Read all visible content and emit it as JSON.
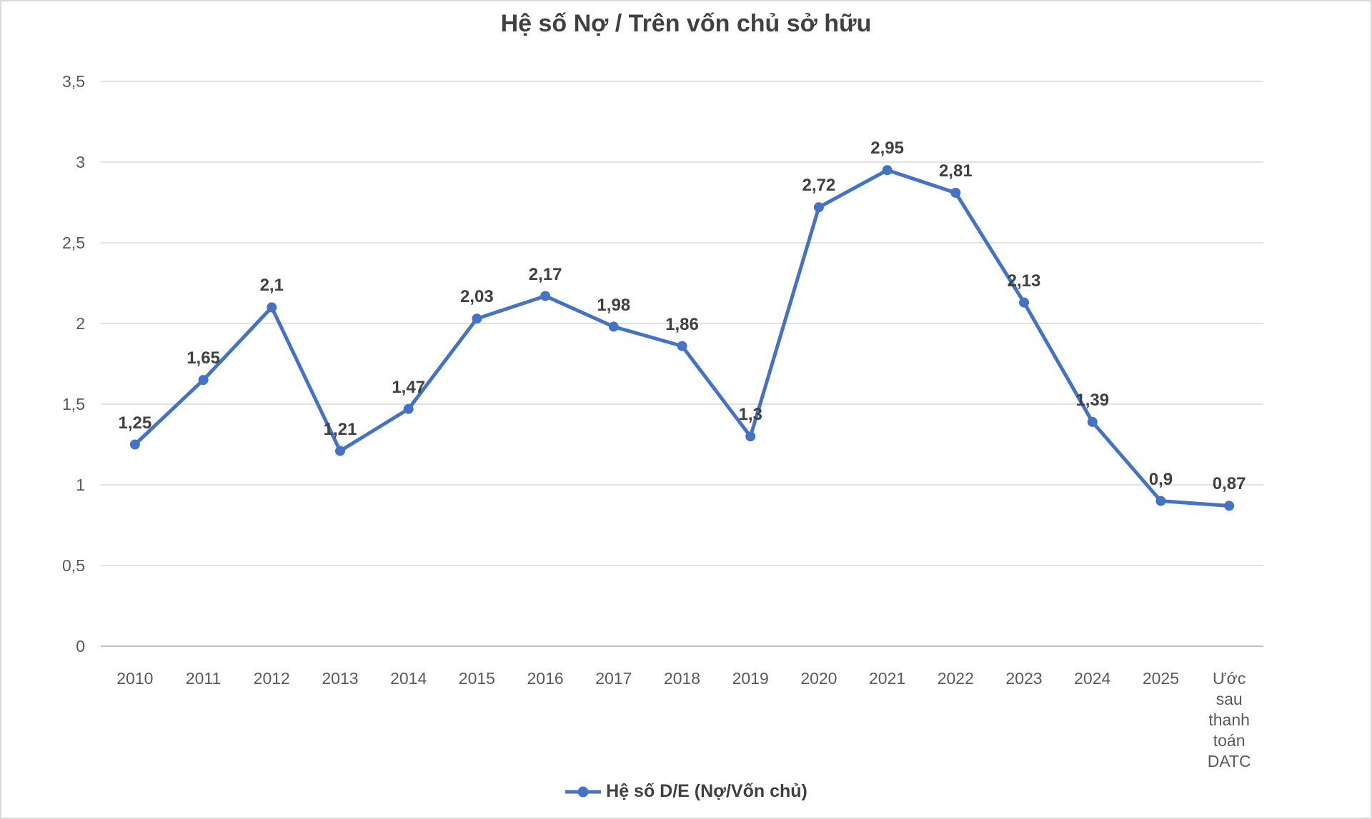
{
  "title": "Hệ số Nợ / Trên vốn chủ sở hữu",
  "colors": {
    "line": "#4472C4",
    "marker": "#4472C4",
    "gridline": "#D9D9D9",
    "axis_line": "#BFBFBF",
    "tick_text": "#595959",
    "data_label_text": "#404040",
    "title_text": "#404040",
    "frame_border": "#D9D9D9"
  },
  "legend": {
    "label": "Hệ số D/E (Nợ/Vốn chủ)",
    "position": "bottom",
    "marker": "line-with-dot"
  },
  "chart_data": {
    "type": "line",
    "title": "Hệ số Nợ / Trên vốn chủ sở hữu",
    "categories": [
      "2010",
      "2011",
      "2012",
      "2013",
      "2014",
      "2015",
      "2016",
      "2017",
      "2018",
      "2019",
      "2020",
      "2021",
      "2022",
      "2023",
      "2024",
      "2025",
      "Ước sau thanh toán DATC"
    ],
    "series": [
      {
        "name": "Hệ số D/E (Nợ/Vốn chủ)",
        "values": [
          1.25,
          1.65,
          2.1,
          1.21,
          1.47,
          2.03,
          2.17,
          1.98,
          1.86,
          1.3,
          2.72,
          2.95,
          2.81,
          2.13,
          1.39,
          0.9,
          0.87
        ],
        "value_labels": [
          "1,25",
          "1,65",
          "2,1",
          "1,21",
          "1,47",
          "2,03",
          "2,17",
          "1,98",
          "1,86",
          "1,3",
          "2,72",
          "2,95",
          "2,81",
          "2,13",
          "1,39",
          "0,9",
          "0,87"
        ]
      }
    ],
    "y_ticks": [
      {
        "value": 3.5,
        "label": "3,5"
      },
      {
        "value": 3.0,
        "label": "3"
      },
      {
        "value": 2.5,
        "label": "2,5"
      },
      {
        "value": 2.0,
        "label": "2"
      },
      {
        "value": 1.5,
        "label": "1,5"
      },
      {
        "value": 1.0,
        "label": "1"
      },
      {
        "value": 0.5,
        "label": "0,5"
      },
      {
        "value": 0.0,
        "label": "0"
      }
    ],
    "ylim": [
      0,
      3.5
    ],
    "xlabel": "",
    "ylabel": "",
    "grid": true,
    "legend_position": "bottom"
  }
}
